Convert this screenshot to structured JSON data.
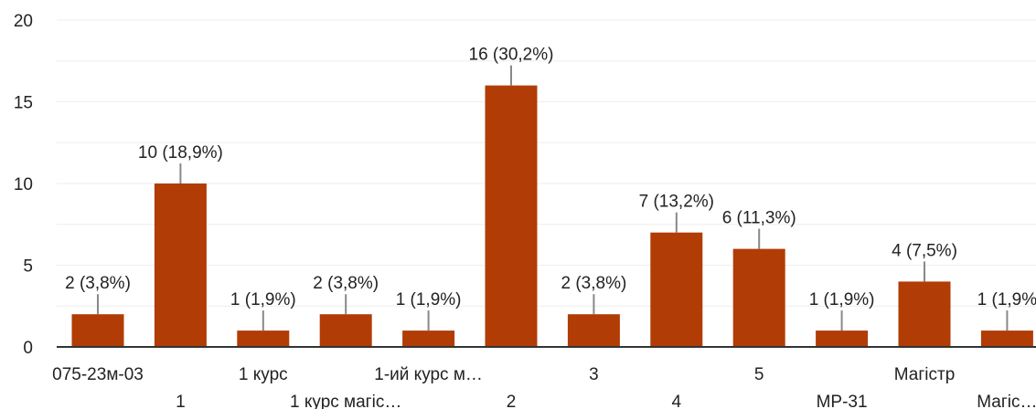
{
  "chart_data": {
    "type": "bar",
    "categories": [
      "075-23м-03",
      "1",
      "1 курс",
      "1 курс магіс…",
      "1-ий курс м…",
      "2",
      "3",
      "4",
      "5",
      "МР-31",
      "Магістр",
      "Магіс…"
    ],
    "values": [
      2,
      10,
      1,
      2,
      1,
      16,
      2,
      7,
      6,
      1,
      4,
      1
    ],
    "data_labels": [
      "2 (3,8%)",
      "10 (18,9%)",
      "1 (1,9%)",
      "2 (3,8%)",
      "1 (1,9%)",
      "16 (30,2%)",
      "2 (3,8%)",
      "7 (13,2%)",
      "6 (11,3%)",
      "1 (1,9%)",
      "4 (7,5%)",
      "1 (1,9%"
    ],
    "ylim": [
      0,
      20
    ],
    "yticks": [
      0,
      5,
      10,
      15,
      20
    ],
    "grid": true,
    "colors": {
      "bar": "#b23c06",
      "label_line": "#888888",
      "axis": "#333333",
      "grid": "#eeeeee",
      "text": "#222222"
    }
  }
}
